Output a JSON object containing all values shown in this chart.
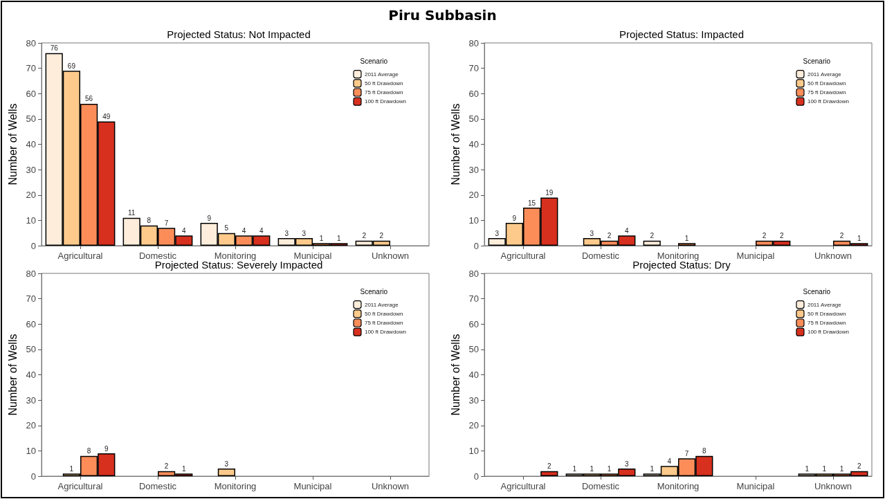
{
  "chart_data": [
    {
      "type": "bar",
      "title": "Projected Status: Not Impacted",
      "annotations": [
        "Piru Subbasin"
      ],
      "ylabel": "Number of Wells",
      "legend_title": "Scenario",
      "legend": "top right",
      "grid": false,
      "data_labels": true,
      "categories": [
        "Agricultural",
        "Domestic",
        "Monitoring",
        "Municipal",
        "Unknown"
      ],
      "ylim": [
        0,
        80
      ],
      "yticks": [
        0,
        10,
        20,
        30,
        40,
        50,
        60,
        70,
        80
      ],
      "series": [
        {
          "name": "2011 Average",
          "color": "#feeddb",
          "values": [
            76,
            11,
            9,
            3,
            2
          ]
        },
        {
          "name": "50 ft Drawdown",
          "color": "#fdca8b",
          "values": [
            69,
            8,
            5,
            3,
            2
          ]
        },
        {
          "name": "75 ft Drawdown",
          "color": "#fc8d59",
          "values": [
            56,
            7,
            4,
            1,
            null
          ]
        },
        {
          "name": "100 ft Drawdown",
          "color": "#d7301f",
          "values": [
            49,
            4,
            4,
            1,
            null
          ]
        }
      ]
    },
    {
      "type": "bar",
      "title": "Projected Status: Impacted",
      "ylabel": "Number of Wells",
      "legend_title": "Scenario",
      "legend": "top right",
      "grid": false,
      "data_labels": true,
      "categories": [
        "Agricultural",
        "Domestic",
        "Monitoring",
        "Municipal",
        "Unknown"
      ],
      "ylim": [
        0,
        80
      ],
      "yticks": [
        0,
        10,
        20,
        30,
        40,
        50,
        60,
        70,
        80
      ],
      "series": [
        {
          "name": "2011 Average",
          "color": "#feeddb",
          "values": [
            3,
            null,
            2,
            null,
            null
          ]
        },
        {
          "name": "50 ft Drawdown",
          "color": "#fdca8b",
          "values": [
            9,
            3,
            null,
            null,
            null
          ]
        },
        {
          "name": "75 ft Drawdown",
          "color": "#fc8d59",
          "values": [
            15,
            2,
            1,
            2,
            2
          ]
        },
        {
          "name": "100 ft Drawdown",
          "color": "#d7301f",
          "values": [
            19,
            4,
            null,
            2,
            1
          ]
        }
      ]
    },
    {
      "type": "bar",
      "title": "Projected Status: Severely Impacted",
      "ylabel": "Number of Wells",
      "legend_title": "Scenario",
      "legend": "top right",
      "grid": false,
      "data_labels": true,
      "categories": [
        "Agricultural",
        "Domestic",
        "Monitoring",
        "Municipal",
        "Unknown"
      ],
      "ylim": [
        0,
        80
      ],
      "yticks": [
        0,
        10,
        20,
        30,
        40,
        50,
        60,
        70,
        80
      ],
      "series": [
        {
          "name": "2011 Average",
          "color": "#feeddb",
          "values": [
            null,
            null,
            null,
            null,
            null
          ]
        },
        {
          "name": "50 ft Drawdown",
          "color": "#fdca8b",
          "values": [
            1,
            null,
            3,
            null,
            null
          ]
        },
        {
          "name": "75 ft Drawdown",
          "color": "#fc8d59",
          "values": [
            8,
            2,
            null,
            null,
            null
          ]
        },
        {
          "name": "100 ft Drawdown",
          "color": "#d7301f",
          "values": [
            9,
            1,
            null,
            null,
            null
          ]
        }
      ]
    },
    {
      "type": "bar",
      "title": "Projected Status: Dry",
      "ylabel": "Number of Wells",
      "legend_title": "Scenario",
      "legend": "top right",
      "grid": false,
      "data_labels": true,
      "categories": [
        "Agricultural",
        "Domestic",
        "Monitoring",
        "Municipal",
        "Unknown"
      ],
      "ylim": [
        0,
        80
      ],
      "yticks": [
        0,
        10,
        20,
        30,
        40,
        50,
        60,
        70,
        80
      ],
      "series": [
        {
          "name": "2011 Average",
          "color": "#feeddb",
          "values": [
            null,
            1,
            1,
            null,
            1
          ]
        },
        {
          "name": "50 ft Drawdown",
          "color": "#fdca8b",
          "values": [
            null,
            1,
            4,
            null,
            1
          ]
        },
        {
          "name": "75 ft Drawdown",
          "color": "#fc8d59",
          "values": [
            null,
            1,
            7,
            null,
            1
          ]
        },
        {
          "name": "100 ft Drawdown",
          "color": "#d7301f",
          "values": [
            2,
            3,
            8,
            null,
            2
          ]
        }
      ]
    }
  ]
}
